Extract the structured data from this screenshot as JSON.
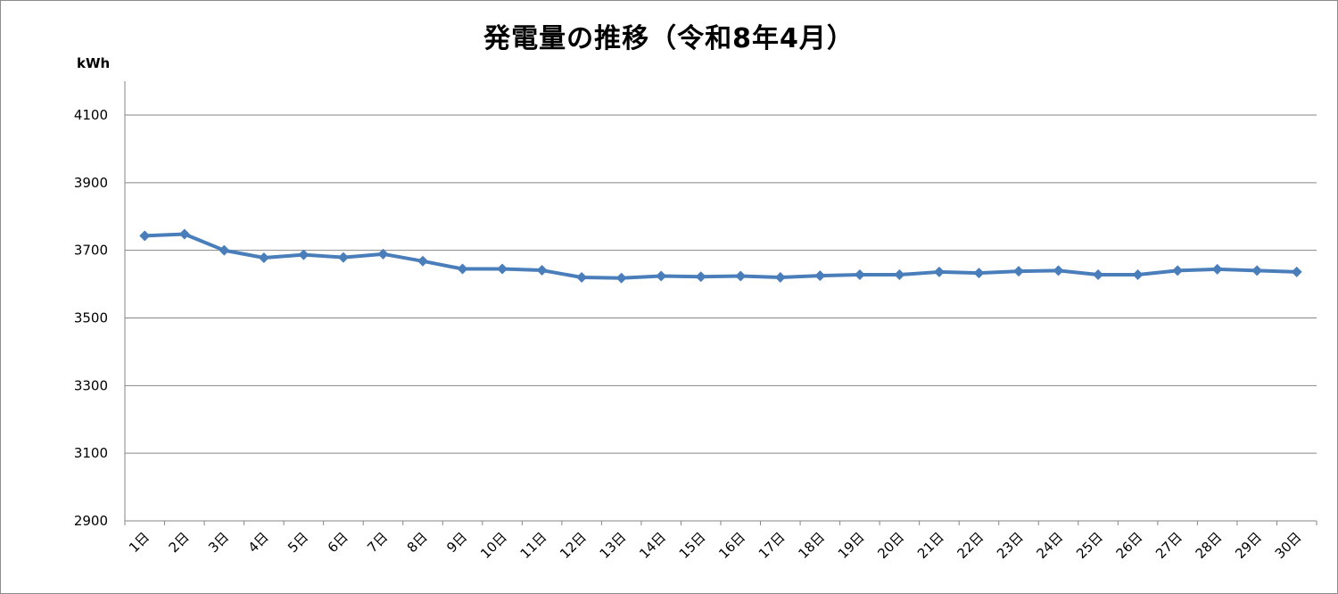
{
  "chart_data": {
    "type": "line",
    "title": "発電量の推移（令和8年4月）",
    "ylabel": "kWh",
    "xlabel": "",
    "ylim": [
      2900,
      4100
    ],
    "yticks": [
      "4100",
      "3900",
      "3700",
      "3500",
      "3300",
      "3100",
      "2900"
    ],
    "grid": true,
    "categories": [
      "1日",
      "2日",
      "3日",
      "4日",
      "5日",
      "6日",
      "7日",
      "8日",
      "9日",
      "10日",
      "11日",
      "12日",
      "13日",
      "14日",
      "15日",
      "16日",
      "17日",
      "18日",
      "19日",
      "20日",
      "21日",
      "22日",
      "23日",
      "24日",
      "25日",
      "26日",
      "27日",
      "28日",
      "29日",
      "30日"
    ],
    "series": [
      {
        "color": "#4a7ebb",
        "values": [
          3743,
          3748,
          3700,
          3678,
          3687,
          3679,
          3689,
          3668,
          3645,
          3645,
          3641,
          3620,
          3618,
          3624,
          3622,
          3624,
          3620,
          3625,
          3628,
          3628,
          3636,
          3633,
          3638,
          3640,
          3628,
          3628,
          3640,
          3644,
          3640,
          3636
        ]
      }
    ]
  }
}
